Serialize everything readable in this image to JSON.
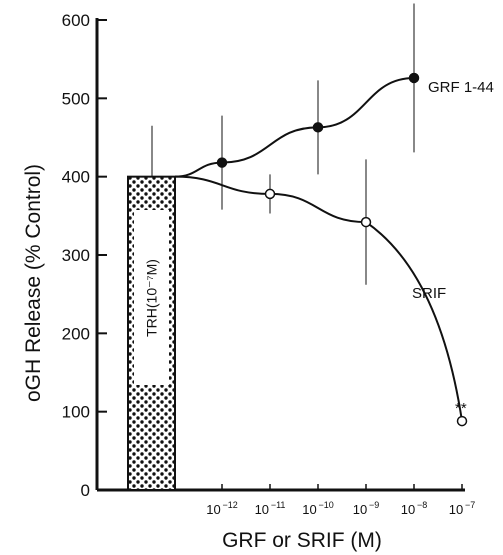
{
  "chart_data": {
    "type": "line",
    "xlabel": "GRF or SRIF (M)",
    "ylabel": "oGH Release (% Control)",
    "ylim": [
      0,
      600
    ],
    "yticks": [
      0,
      100,
      200,
      300,
      400,
      500,
      600
    ],
    "x_ticks": [
      {
        "base": "10",
        "exp": "-12"
      },
      {
        "base": "10",
        "exp": "-11"
      },
      {
        "base": "10",
        "exp": "-10"
      },
      {
        "base": "10",
        "exp": "-9"
      },
      {
        "base": "10",
        "exp": "-8"
      },
      {
        "base": "10",
        "exp": "-7"
      }
    ],
    "baseline": {
      "label": "TRH(10⁻⁷M)",
      "value": 400,
      "error": 65
    },
    "series": [
      {
        "name": "GRF 1-44",
        "marker": "filled-circle",
        "x": [
          -12,
          -10,
          -8
        ],
        "y": [
          418,
          463,
          526
        ],
        "err": [
          60,
          60,
          95
        ]
      },
      {
        "name": "SRIF",
        "marker": "open-circle",
        "x": [
          -11,
          -9,
          -7
        ],
        "y": [
          378,
          342,
          88
        ],
        "err": [
          25,
          80,
          0
        ],
        "annotation": "**"
      }
    ],
    "grid": false
  }
}
